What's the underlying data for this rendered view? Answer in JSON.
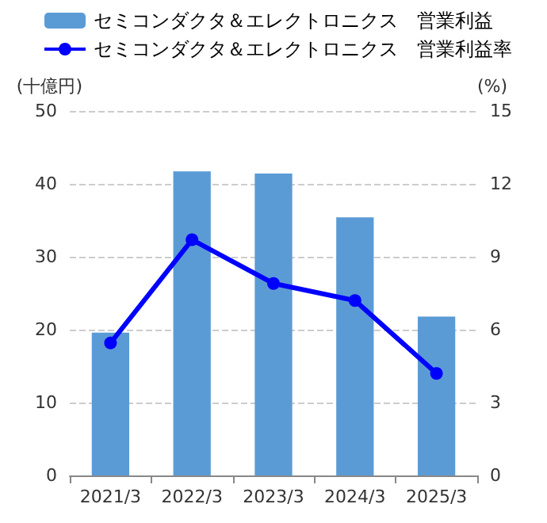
{
  "chart_data": {
    "type": "bar",
    "categories": [
      "2021/3",
      "2022/3",
      "2023/3",
      "2024/3",
      "2025/3"
    ],
    "series": [
      {
        "name": "セミコンダクタ＆エレクトロニクス　営業利益",
        "color": "#5b9bd5",
        "values": [
          19.6,
          41.7,
          41.4,
          35.4,
          21.8
        ]
      },
      {
        "name": "セミコンダクタ＆エレクトロニクス　営業利益率",
        "type": "line",
        "axis": "y2",
        "color": "#0000ff",
        "values": [
          5.45,
          9.7,
          7.9,
          7.2,
          4.2
        ]
      }
    ],
    "ylabel": "(十億円)",
    "y2label": "(%)",
    "ylim": [
      0,
      50
    ],
    "yticks": [
      0,
      10,
      20,
      30,
      40,
      50
    ],
    "y2lim": [
      0,
      15
    ],
    "y2ticks": [
      0,
      3,
      6,
      9,
      12,
      15
    ],
    "grid": "y",
    "legend": "top",
    "marker": "circle",
    "line_style": "solid"
  }
}
